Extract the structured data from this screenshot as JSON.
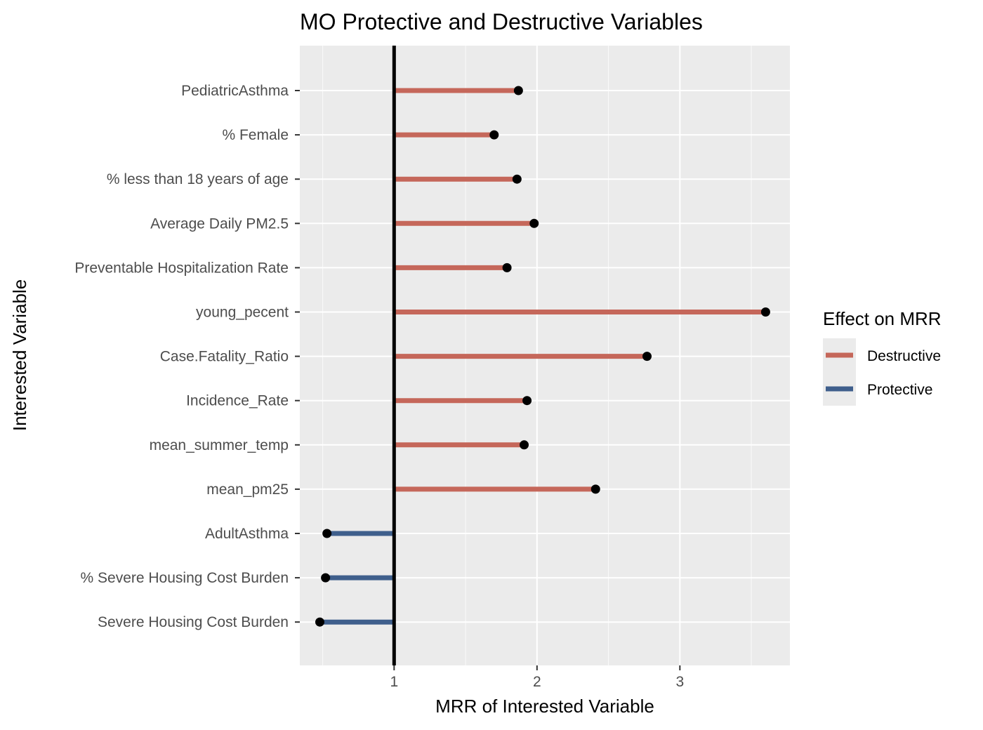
{
  "chart_data": {
    "type": "lollipop",
    "title": "MO Protective and Destructive Variables",
    "xlabel": "MRR of Interested Variable",
    "ylabel": "Interested Variable",
    "xlim": [
      0.34,
      3.77
    ],
    "x_ticks": [
      1,
      2,
      3
    ],
    "reference_x": 1,
    "grid": true,
    "legend": {
      "title": "Effect on MRR",
      "position": "right",
      "entries": [
        {
          "label": "Destructive",
          "color": "#c5675a"
        },
        {
          "label": "Protective",
          "color": "#3f5f8c"
        }
      ]
    },
    "categories": [
      "PediatricAsthma",
      "% Female",
      "% less than 18 years of age",
      "Average Daily PM2.5",
      "Preventable Hospitalization Rate",
      "young_pecent",
      "Case.Fatality_Ratio",
      "Incidence_Rate",
      "mean_summer_temp",
      "mean_pm25",
      "AdultAsthma",
      "% Severe Housing Cost Burden",
      "Severe Housing Cost Burden"
    ],
    "values": [
      1.87,
      1.7,
      1.86,
      1.98,
      1.79,
      3.6,
      2.77,
      1.93,
      1.91,
      2.41,
      0.53,
      0.52,
      0.48
    ],
    "effects": [
      "Destructive",
      "Destructive",
      "Destructive",
      "Destructive",
      "Destructive",
      "Destructive",
      "Destructive",
      "Destructive",
      "Destructive",
      "Destructive",
      "Protective",
      "Protective",
      "Protective"
    ]
  }
}
